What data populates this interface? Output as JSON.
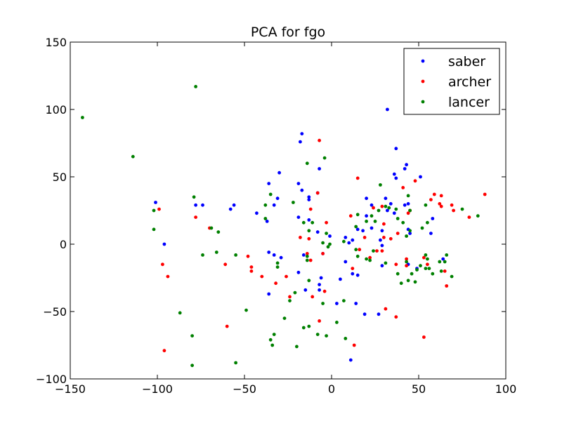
{
  "chart_data": {
    "type": "scatter",
    "title": "PCA for fgo",
    "xlabel": "",
    "ylabel": "",
    "xlim": [
      -150,
      100
    ],
    "ylim": [
      -100,
      150
    ],
    "x_ticks": [
      -150,
      -100,
      -50,
      0,
      50,
      100
    ],
    "y_ticks": [
      -100,
      -50,
      0,
      50,
      100,
      150
    ],
    "x_tick_labels": [
      "−150",
      "−100",
      "−50",
      "0",
      "50",
      "100"
    ],
    "y_tick_labels": [
      "−100",
      "−50",
      "0",
      "50",
      "100",
      "150"
    ],
    "grid": false,
    "legend_position": "top-right",
    "series": [
      {
        "name": "saber",
        "color": "#0000ff",
        "points": [
          [
            32,
            100
          ],
          [
            -17,
            82
          ],
          [
            -18,
            76
          ],
          [
            37,
            71
          ],
          [
            -7,
            56
          ],
          [
            43,
            59
          ],
          [
            42,
            56
          ],
          [
            -36,
            45
          ],
          [
            -30,
            53
          ],
          [
            36,
            52
          ],
          [
            51,
            50
          ],
          [
            37,
            49
          ],
          [
            -19,
            45
          ],
          [
            -17,
            40
          ],
          [
            -8,
            38
          ],
          [
            -101,
            31
          ],
          [
            -78,
            29
          ],
          [
            -74,
            29
          ],
          [
            -56,
            29
          ],
          [
            -58,
            26
          ],
          [
            -31,
            34
          ],
          [
            -13,
            35
          ],
          [
            -13,
            33
          ],
          [
            -33,
            29
          ],
          [
            -43,
            23
          ],
          [
            -37,
            17
          ],
          [
            -19,
            20
          ],
          [
            -13,
            18
          ],
          [
            -8,
            9
          ],
          [
            -1,
            6
          ],
          [
            8,
            5
          ],
          [
            10,
            1
          ],
          [
            12,
            3
          ],
          [
            20,
            34
          ],
          [
            23,
            29
          ],
          [
            20,
            21
          ],
          [
            18,
            10
          ],
          [
            15,
            11
          ],
          [
            23,
            12
          ],
          [
            28,
            3
          ],
          [
            29,
            10
          ],
          [
            32,
            25
          ],
          [
            31,
            34
          ],
          [
            34,
            30
          ],
          [
            36,
            23
          ],
          [
            42,
            29
          ],
          [
            44,
            30
          ],
          [
            44,
            11
          ],
          [
            45,
            8
          ],
          [
            58,
            19
          ],
          [
            57,
            8
          ],
          [
            -96,
            0
          ],
          [
            -33,
            -8
          ],
          [
            -36,
            -6
          ],
          [
            -29,
            -10
          ],
          [
            -19,
            -21
          ],
          [
            -16,
            -8
          ],
          [
            -5,
            -7
          ],
          [
            8,
            -13
          ],
          [
            12,
            -22
          ],
          [
            15,
            -23
          ],
          [
            29,
            -1
          ],
          [
            29,
            -16
          ],
          [
            44,
            -15
          ],
          [
            49,
            -18
          ],
          [
            64,
            -11
          ],
          [
            -6,
            -25
          ],
          [
            5,
            -26
          ],
          [
            -7,
            -30
          ],
          [
            -15,
            -34
          ],
          [
            -7,
            -34
          ],
          [
            3,
            -44
          ],
          [
            14,
            -44
          ],
          [
            19,
            -52
          ],
          [
            27,
            -52
          ],
          [
            -36,
            -37
          ],
          [
            11,
            -86
          ]
        ]
      },
      {
        "name": "archer",
        "color": "#ff0000",
        "points": [
          [
            -7,
            77
          ],
          [
            -8,
            38
          ],
          [
            15,
            49
          ],
          [
            41,
            42
          ],
          [
            48,
            47
          ],
          [
            59,
            37
          ],
          [
            63,
            36
          ],
          [
            57,
            33
          ],
          [
            62,
            30
          ],
          [
            63,
            28
          ],
          [
            69,
            29
          ],
          [
            70,
            25
          ],
          [
            88,
            37
          ],
          [
            79,
            20
          ],
          [
            -99,
            26
          ],
          [
            -78,
            20
          ],
          [
            -70,
            12
          ],
          [
            -12,
            26
          ],
          [
            -3,
            16
          ],
          [
            11,
            21
          ],
          [
            24,
            27
          ],
          [
            29,
            28
          ],
          [
            30,
            15
          ],
          [
            45,
            25
          ],
          [
            44,
            23
          ],
          [
            30,
            5
          ],
          [
            19,
            5
          ],
          [
            -18,
            5
          ],
          [
            -13,
            4
          ],
          [
            34,
            4
          ],
          [
            38,
            8
          ],
          [
            -14,
            -7
          ],
          [
            -12,
            -12
          ],
          [
            -5,
            -7
          ],
          [
            16,
            -4
          ],
          [
            12,
            -18
          ],
          [
            26,
            -5
          ],
          [
            29,
            -5
          ],
          [
            22,
            -10
          ],
          [
            43,
            -11
          ],
          [
            43,
            -16
          ],
          [
            37,
            -15
          ],
          [
            53,
            -10
          ],
          [
            55,
            -15
          ],
          [
            65,
            -20
          ],
          [
            -97,
            -15
          ],
          [
            -94,
            -24
          ],
          [
            -61,
            -15
          ],
          [
            -48,
            -9
          ],
          [
            -46,
            -17
          ],
          [
            -46,
            -20
          ],
          [
            -40,
            -24
          ],
          [
            -32,
            -29
          ],
          [
            -26,
            -24
          ],
          [
            -11,
            -39
          ],
          [
            -24,
            -39
          ],
          [
            -4,
            -35
          ],
          [
            31,
            -48
          ],
          [
            37,
            -54
          ],
          [
            -7,
            -57
          ],
          [
            -60,
            -61
          ],
          [
            13,
            -75
          ],
          [
            53,
            -69
          ],
          [
            -96,
            -79
          ],
          [
            66,
            -31
          ]
        ]
      },
      {
        "name": "lancer",
        "color": "#008000",
        "points": [
          [
            -143,
            94
          ],
          [
            -78,
            117
          ],
          [
            -114,
            65
          ],
          [
            -14,
            60
          ],
          [
            -4,
            64
          ],
          [
            28,
            44
          ],
          [
            -35,
            37
          ],
          [
            -79,
            35
          ],
          [
            -38,
            29
          ],
          [
            -22,
            31
          ],
          [
            -102,
            25
          ],
          [
            -69,
            12
          ],
          [
            -65,
            9
          ],
          [
            -38,
            19
          ],
          [
            -102,
            11
          ],
          [
            -16,
            16
          ],
          [
            -11,
            16
          ],
          [
            -13,
            10
          ],
          [
            -3,
            8
          ],
          [
            -1,
            0
          ],
          [
            -5,
            1
          ],
          [
            7,
            2
          ],
          [
            14,
            13
          ],
          [
            15,
            22
          ],
          [
            20,
            17
          ],
          [
            23,
            21
          ],
          [
            27,
            25
          ],
          [
            25,
            17
          ],
          [
            31,
            28
          ],
          [
            33,
            27
          ],
          [
            41,
            16
          ],
          [
            44,
            36
          ],
          [
            37,
            26
          ],
          [
            55,
            16
          ],
          [
            75,
            26
          ],
          [
            84,
            21
          ],
          [
            38,
            19
          ],
          [
            45,
            25
          ],
          [
            54,
            29
          ],
          [
            52,
            12
          ],
          [
            45,
            10
          ],
          [
            43,
            6
          ],
          [
            -74,
            -8
          ],
          [
            -66,
            -6
          ],
          [
            -55,
            -8
          ],
          [
            -31,
            -14
          ],
          [
            -31,
            -17
          ],
          [
            -14,
            -12
          ],
          [
            -14,
            -9
          ],
          [
            -2,
            -2
          ],
          [
            14,
            -4
          ],
          [
            15,
            -9
          ],
          [
            22,
            -12
          ],
          [
            20,
            -11
          ],
          [
            24,
            -5
          ],
          [
            31,
            -14
          ],
          [
            38,
            -22
          ],
          [
            43,
            -13
          ],
          [
            46,
            -22
          ],
          [
            49,
            -19
          ],
          [
            51,
            -16
          ],
          [
            54,
            -18
          ],
          [
            54,
            -8
          ],
          [
            55,
            -11
          ],
          [
            58,
            -22
          ],
          [
            63,
            -20
          ],
          [
            65,
            -13
          ],
          [
            66,
            -8
          ],
          [
            69,
            -24
          ],
          [
            56,
            -18
          ],
          [
            62,
            -13
          ],
          [
            40,
            -29
          ],
          [
            -13,
            -27
          ],
          [
            -24,
            -42
          ],
          [
            -21,
            -36
          ],
          [
            -5,
            -44
          ],
          [
            7,
            -42
          ],
          [
            -87,
            -51
          ],
          [
            -49,
            -49
          ],
          [
            -27,
            -55
          ],
          [
            -16,
            -62
          ],
          [
            -13,
            -61
          ],
          [
            3,
            -58
          ],
          [
            -33,
            -67
          ],
          [
            -35,
            -71
          ],
          [
            -34,
            -75
          ],
          [
            -80,
            -68
          ],
          [
            -20,
            -76
          ],
          [
            -8,
            -67
          ],
          [
            -3,
            -68
          ],
          [
            8,
            -70
          ],
          [
            -80,
            -90
          ],
          [
            -55,
            -88
          ],
          [
            48,
            -28
          ],
          [
            44,
            -27
          ]
        ]
      }
    ]
  }
}
